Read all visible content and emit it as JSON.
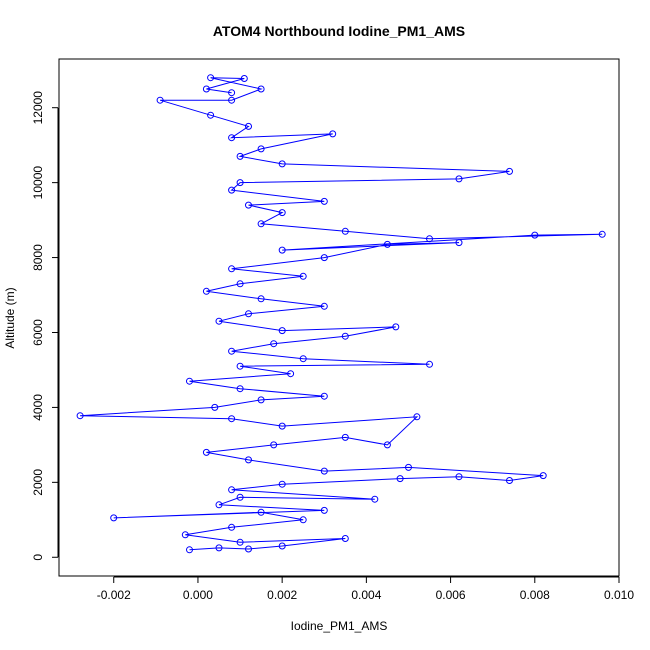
{
  "chart_data": {
    "type": "line",
    "title": "ATOM4 Northbound Iodine_PM1_AMS",
    "xlabel": "Iodine_PM1_AMS",
    "ylabel": "Altitude (m)",
    "xlim": [
      -0.0033,
      0.01
    ],
    "ylim": [
      -500,
      13300
    ],
    "x_ticks": [
      -0.002,
      0.0,
      0.002,
      0.004,
      0.006,
      0.008,
      0.01
    ],
    "x_tick_labels": [
      "-0.002",
      "0.000",
      "0.002",
      "0.004",
      "0.006",
      "0.008",
      "0.010"
    ],
    "y_ticks": [
      0,
      2000,
      4000,
      6000,
      8000,
      10000,
      12000
    ],
    "y_tick_labels": [
      "0",
      "2000",
      "4000",
      "6000",
      "8000",
      "10000",
      "12000"
    ],
    "grid": false,
    "series": [
      {
        "color": "#0000ff",
        "marker": "open-circle",
        "points": [
          [
            -0.0002,
            200
          ],
          [
            0.0005,
            250
          ],
          [
            0.0012,
            220
          ],
          [
            0.002,
            300
          ],
          [
            0.0035,
            500
          ],
          [
            0.001,
            400
          ],
          [
            -0.0003,
            600
          ],
          [
            0.0008,
            800
          ],
          [
            0.0025,
            1000
          ],
          [
            0.0015,
            1200
          ],
          [
            -0.002,
            1050
          ],
          [
            0.003,
            1250
          ],
          [
            0.0005,
            1400
          ],
          [
            0.001,
            1600
          ],
          [
            0.0042,
            1550
          ],
          [
            0.0008,
            1800
          ],
          [
            0.002,
            1950
          ],
          [
            0.0048,
            2100
          ],
          [
            0.0062,
            2150
          ],
          [
            0.0074,
            2050
          ],
          [
            0.0082,
            2180
          ],
          [
            0.005,
            2400
          ],
          [
            0.003,
            2300
          ],
          [
            0.0012,
            2600
          ],
          [
            0.0002,
            2800
          ],
          [
            0.0018,
            3000
          ],
          [
            0.0035,
            3200
          ],
          [
            0.0045,
            3000
          ],
          [
            0.0052,
            3750
          ],
          [
            0.002,
            3500
          ],
          [
            0.0008,
            3700
          ],
          [
            -0.0028,
            3780
          ],
          [
            0.0004,
            4000
          ],
          [
            0.0015,
            4200
          ],
          [
            0.003,
            4300
          ],
          [
            0.001,
            4500
          ],
          [
            -0.0002,
            4700
          ],
          [
            0.0022,
            4900
          ],
          [
            0.001,
            5100
          ],
          [
            0.0055,
            5150
          ],
          [
            0.0025,
            5300
          ],
          [
            0.0008,
            5500
          ],
          [
            0.0018,
            5700
          ],
          [
            0.0035,
            5900
          ],
          [
            0.0047,
            6150
          ],
          [
            0.002,
            6050
          ],
          [
            0.0005,
            6300
          ],
          [
            0.0012,
            6500
          ],
          [
            0.003,
            6700
          ],
          [
            0.0015,
            6900
          ],
          [
            0.0002,
            7100
          ],
          [
            0.001,
            7300
          ],
          [
            0.0025,
            7500
          ],
          [
            0.0008,
            7700
          ],
          [
            0.003,
            8000
          ],
          [
            0.0045,
            8350
          ],
          [
            0.0062,
            8400
          ],
          [
            0.002,
            8200
          ],
          [
            0.008,
            8600
          ],
          [
            0.0096,
            8620
          ],
          [
            0.0055,
            8500
          ],
          [
            0.0035,
            8700
          ],
          [
            0.0015,
            8900
          ],
          [
            0.002,
            9200
          ],
          [
            0.0012,
            9400
          ],
          [
            0.003,
            9500
          ],
          [
            0.0008,
            9800
          ],
          [
            0.001,
            10000
          ],
          [
            0.0062,
            10100
          ],
          [
            0.0074,
            10300
          ],
          [
            0.002,
            10500
          ],
          [
            0.001,
            10700
          ],
          [
            0.0015,
            10900
          ],
          [
            0.0032,
            11300
          ],
          [
            0.0008,
            11200
          ],
          [
            0.0012,
            11500
          ],
          [
            0.0003,
            11800
          ],
          [
            -0.0009,
            12200
          ],
          [
            0.0008,
            12200
          ],
          [
            0.0015,
            12500
          ],
          [
            0.0003,
            12800
          ],
          [
            0.0011,
            12780
          ],
          [
            0.0002,
            12500
          ],
          [
            0.0008,
            12400
          ]
        ]
      }
    ]
  }
}
